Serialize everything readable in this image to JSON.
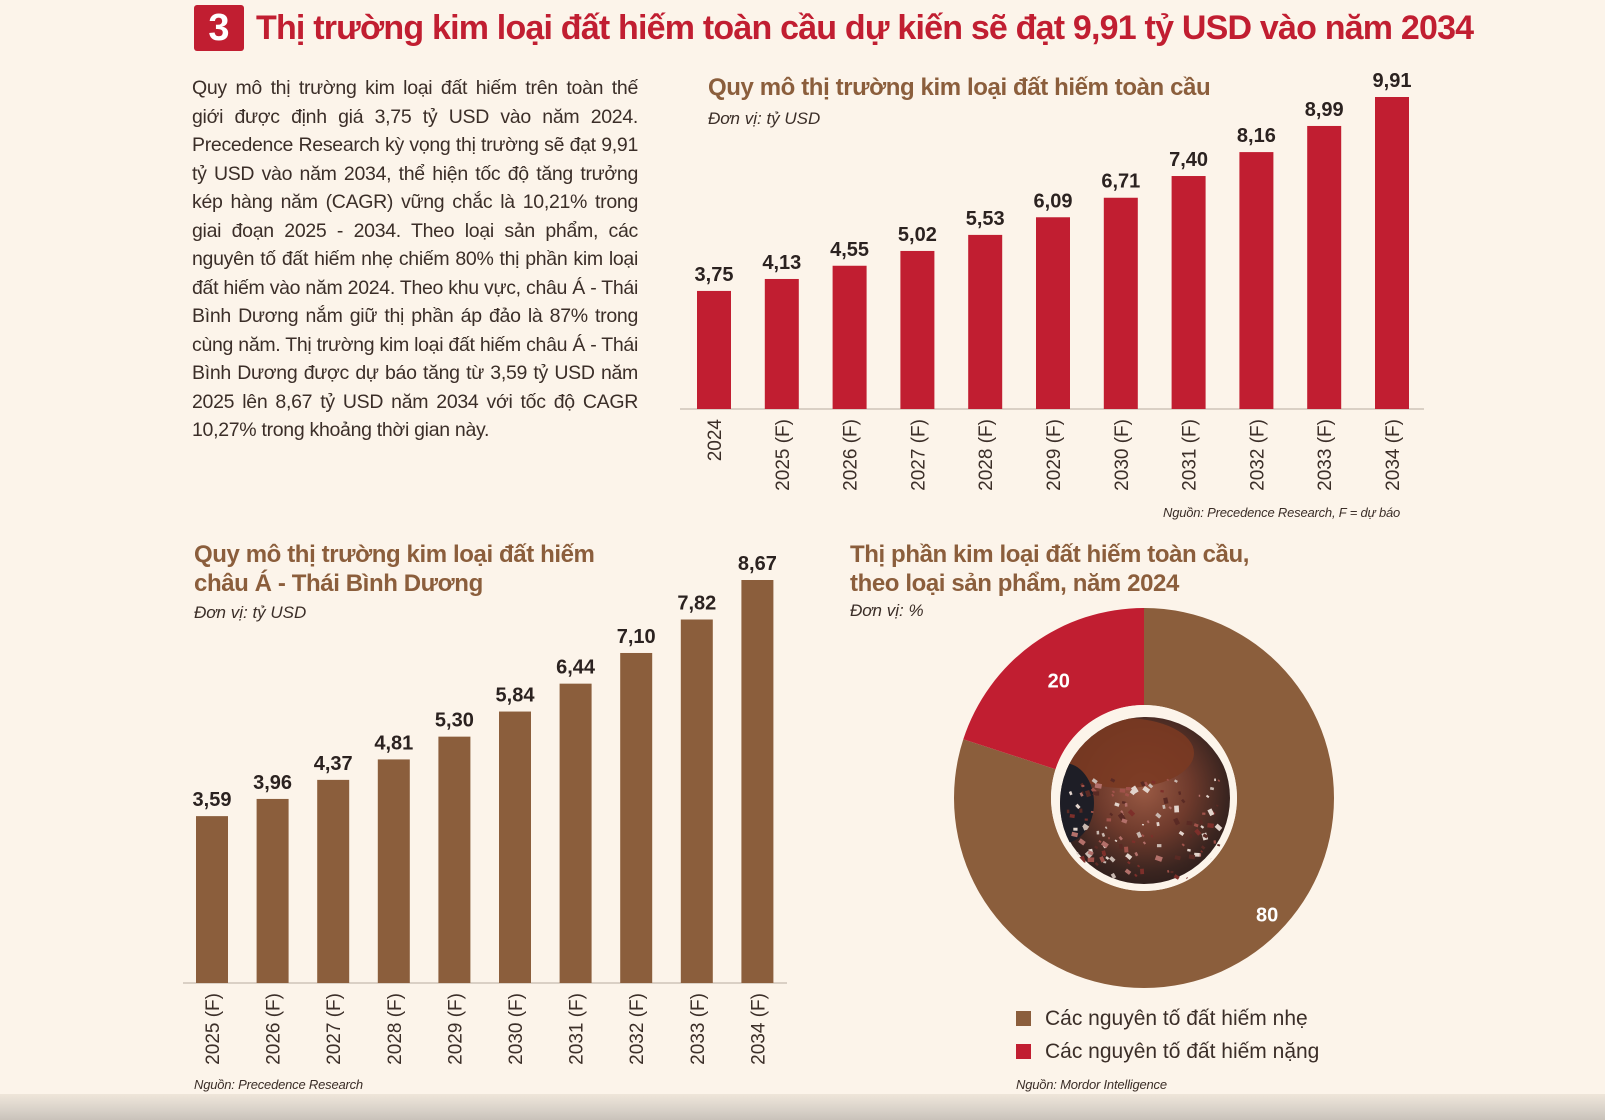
{
  "header": {
    "number": "3",
    "title": "Thị trường kim loại đất hiếm toàn cầu dự kiến sẽ đạt 9,91 tỷ USD vào năm 2034"
  },
  "intro_text": "Quy mô thị trường kim loại đất hiếm trên toàn thế giới được định giá 3,75 tỷ USD vào năm 2024. Precedence Research kỳ vọng thị trường sẽ đạt 9,91 tỷ USD vào năm 2034, thể hiện tốc độ tăng trưởng kép hàng năm (CAGR) vững chắc là 10,21% trong giai đoạn 2025 - 2034. Theo loại sản phẩm, các nguyên tố đất hiếm nhẹ chiếm 80% thị phần kim loại đất hiếm vào năm 2024. Theo khu vực, châu Á - Thái Bình Dương nắm giữ thị phần áp đảo là 87% trong cùng năm. Thị trường kim loại đất hiếm châu Á - Thái Bình Dương được dự báo tăng từ 3,59 tỷ USD năm 2025 lên 8,67 tỷ USD năm 2034 với tốc độ CAGR 10,27% trong khoảng thời gian này.",
  "colors": {
    "red": "#c11e31",
    "brown": "#8b5e3c",
    "title_brown": "#8b5e3c",
    "background": "#fcf4ea"
  },
  "chart_data": [
    {
      "type": "bar",
      "title": "Quy mô thị trường kim loại đất hiếm toàn cầu",
      "unit": "Đơn vị: tỷ USD",
      "categories": [
        "2024",
        "2025 (F)",
        "2026 (F)",
        "2027 (F)",
        "2028 (F)",
        "2029 (F)",
        "2030 (F)",
        "2031 (F)",
        "2032 (F)",
        "2033 (F)",
        "2034 (F)"
      ],
      "values": [
        3.75,
        4.13,
        4.55,
        5.02,
        5.53,
        6.09,
        6.71,
        7.4,
        8.16,
        8.99,
        9.91
      ],
      "labels": [
        "3,75",
        "4,13",
        "4,55",
        "5,02",
        "5,53",
        "6,09",
        "6,71",
        "7,40",
        "8,16",
        "8,99",
        "9,91"
      ],
      "ylim": [
        0,
        9.91
      ],
      "color": "#c11e31",
      "source": "Nguồn: Precedence Research, F = dự báo"
    },
    {
      "type": "bar",
      "title_line1": "Quy mô thị trường kim loại đất hiếm",
      "title_line2": "châu Á - Thái Bình Dương",
      "unit": "Đơn vị: tỷ USD",
      "categories": [
        "2025 (F)",
        "2026 (F)",
        "2027 (F)",
        "2028 (F)",
        "2029 (F)",
        "2030 (F)",
        "2031 (F)",
        "2032 (F)",
        "2033 (F)",
        "2034 (F)"
      ],
      "values": [
        3.59,
        3.96,
        4.37,
        4.81,
        5.3,
        5.84,
        6.44,
        7.1,
        7.82,
        8.67
      ],
      "labels": [
        "3,59",
        "3,96",
        "4,37",
        "4,81",
        "5,30",
        "5,84",
        "6,44",
        "7,10",
        "7,82",
        "8,67"
      ],
      "ylim": [
        0,
        8.67
      ],
      "color": "#8b5e3c",
      "source": "Nguồn: Precedence Research"
    },
    {
      "type": "pie",
      "title_line1": "Thị phần kim loại đất hiếm toàn cầu,",
      "title_line2": "theo loại sản phẩm, năm 2024",
      "unit": "Đơn vị: %",
      "slices": [
        {
          "name": "Các nguyên tố đất hiếm nhẹ",
          "value": 80,
          "label": "80",
          "color": "#8b5e3c"
        },
        {
          "name": "Các nguyên tố đất hiếm nặng",
          "value": 20,
          "label": "20",
          "color": "#c11e31"
        }
      ],
      "source": "Nguồn: Mordor Intelligence"
    }
  ]
}
